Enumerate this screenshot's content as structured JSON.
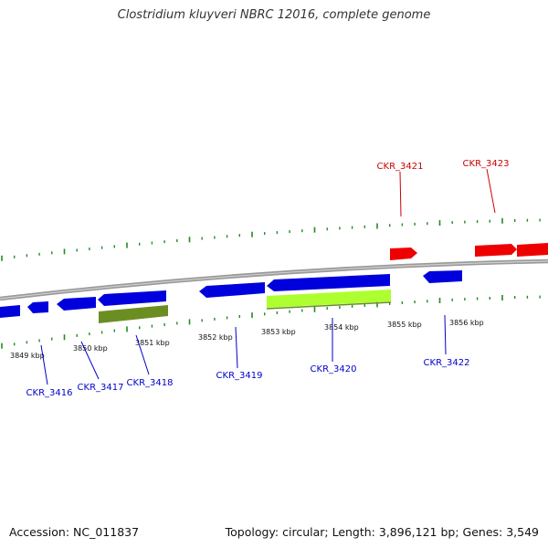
{
  "title": "Clostridium kluyveri NBRC 12016, complete genome",
  "accession": "Accession: NC_011837",
  "topology": "Topology: circular; Length: 3,896,121 bp; Genes: 3,549",
  "colors": {
    "forward": "#ee0000",
    "reverse": "#0000dd",
    "feature_dark": "#6b8e23",
    "feature_light": "#adff2f",
    "tick": "#228b22",
    "axis": "#888888"
  },
  "kbp_labels": [
    "3849 kbp",
    "3850 kbp",
    "3851 kbp",
    "3852 kbp",
    "3853 kbp",
    "3854 kbp",
    "3855 kbp",
    "3856 kbp"
  ],
  "genes_top": [
    "CKR_3421",
    "CKR_3423"
  ],
  "genes_bottom": [
    "CKR_3416",
    "CKR_3417",
    "CKR_3418",
    "CKR_3419",
    "CKR_3420",
    "CKR_3422"
  ]
}
